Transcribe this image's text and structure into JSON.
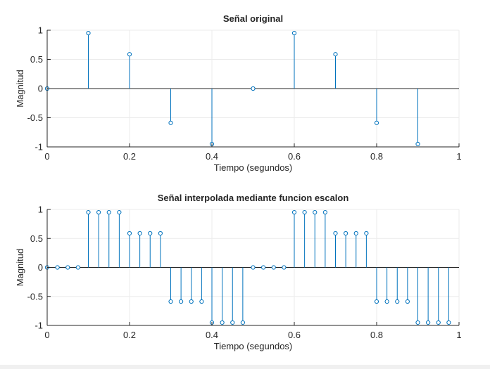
{
  "chart_data": [
    {
      "type": "stem",
      "title": "Señal original",
      "xlabel": "Tiempo (segundos)",
      "ylabel": "Magnitud",
      "xlim": [
        0,
        1
      ],
      "ylim": [
        -1,
        1
      ],
      "xticks": [
        0,
        0.2,
        0.4,
        0.6,
        0.8,
        1
      ],
      "xtick_labels": [
        "0",
        "0.2",
        "0.4",
        "0.6",
        "0.8",
        "1"
      ],
      "yticks": [
        -1,
        -0.5,
        0,
        0.5,
        1
      ],
      "ytick_labels": [
        "-1",
        "-0.5",
        "0",
        "0.5",
        "1"
      ],
      "grid": true,
      "color": "#0072BD",
      "x": [
        0,
        0.1,
        0.2,
        0.3,
        0.4,
        0.5,
        0.6,
        0.7,
        0.8,
        0.9
      ],
      "y": [
        0,
        0.951,
        0.588,
        -0.588,
        -0.951,
        0,
        0.951,
        0.588,
        -0.588,
        -0.951
      ]
    },
    {
      "type": "stem",
      "title": "Señal interpolada mediante funcion escalon",
      "xlabel": "Tiempo (segundos)",
      "ylabel": "Magnitud",
      "xlim": [
        0,
        1
      ],
      "ylim": [
        -1,
        1
      ],
      "xticks": [
        0,
        0.2,
        0.4,
        0.6,
        0.8,
        1
      ],
      "xtick_labels": [
        "0",
        "0.2",
        "0.4",
        "0.6",
        "0.8",
        "1"
      ],
      "yticks": [
        -1,
        -0.5,
        0,
        0.5,
        1
      ],
      "ytick_labels": [
        "-1",
        "-0.5",
        "0",
        "0.5",
        "1"
      ],
      "grid": true,
      "color": "#0072BD",
      "x": [
        0,
        0.025,
        0.05,
        0.075,
        0.1,
        0.125,
        0.15,
        0.175,
        0.2,
        0.225,
        0.25,
        0.275,
        0.3,
        0.325,
        0.35,
        0.375,
        0.4,
        0.425,
        0.45,
        0.475,
        0.5,
        0.525,
        0.55,
        0.575,
        0.6,
        0.625,
        0.65,
        0.675,
        0.7,
        0.725,
        0.75,
        0.775,
        0.8,
        0.825,
        0.85,
        0.875,
        0.9,
        0.925,
        0.95,
        0.975
      ],
      "y": [
        0,
        0,
        0,
        0,
        0.951,
        0.951,
        0.951,
        0.951,
        0.588,
        0.588,
        0.588,
        0.588,
        -0.588,
        -0.588,
        -0.588,
        -0.588,
        -0.951,
        -0.951,
        -0.951,
        -0.951,
        0,
        0,
        0,
        0,
        0.951,
        0.951,
        0.951,
        0.951,
        0.588,
        0.588,
        0.588,
        0.588,
        -0.588,
        -0.588,
        -0.588,
        -0.588,
        -0.951,
        -0.951,
        -0.951,
        -0.951
      ]
    }
  ]
}
